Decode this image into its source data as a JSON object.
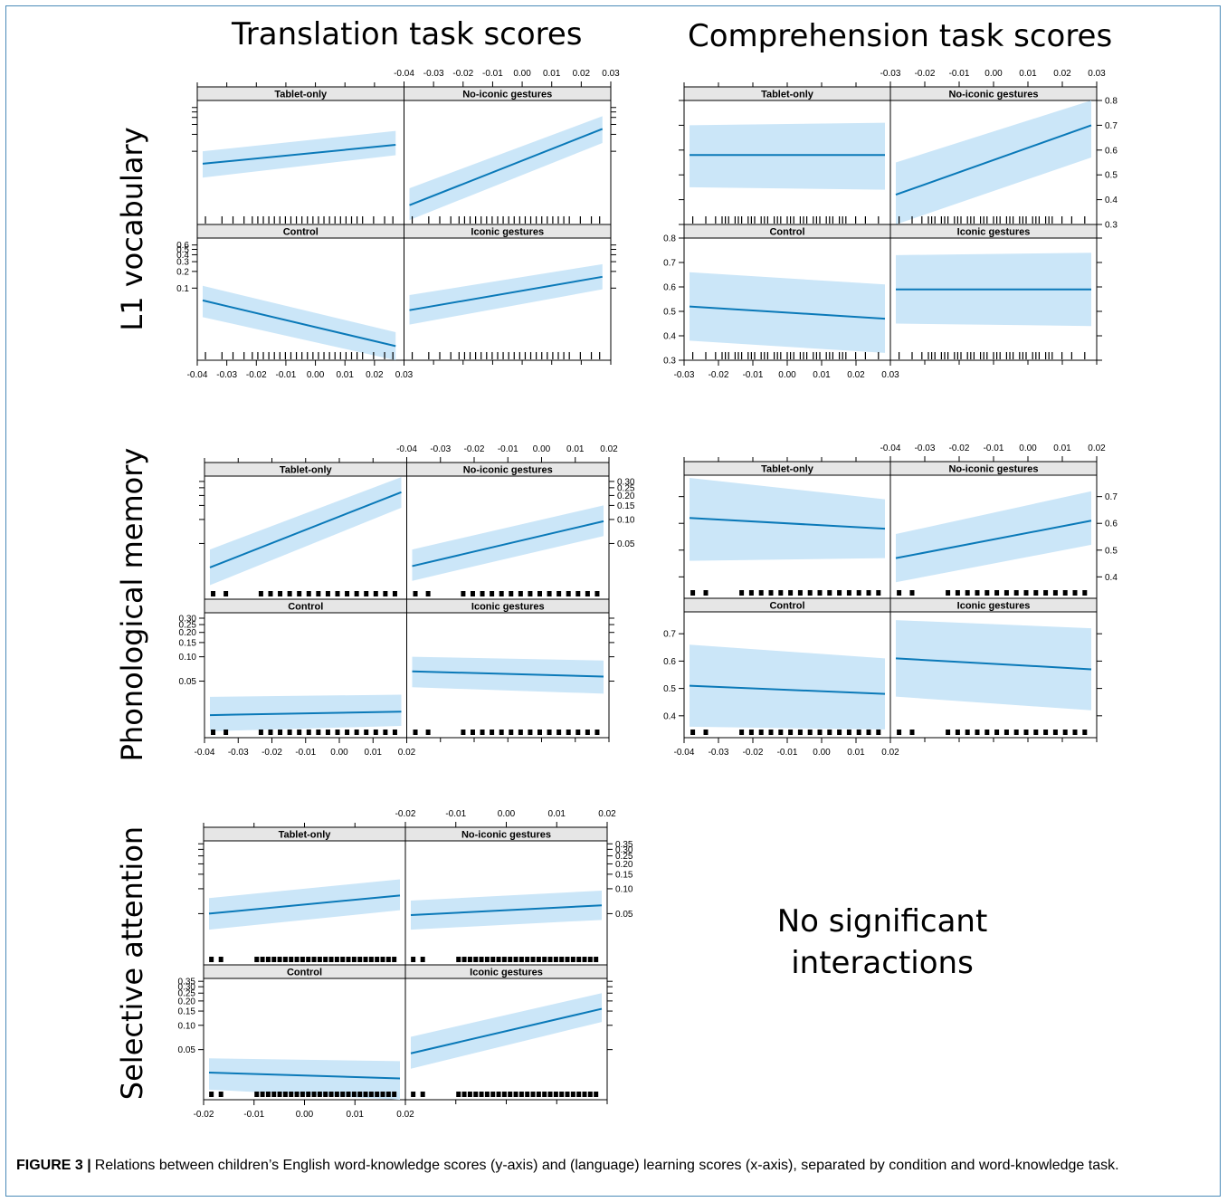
{
  "titles": {
    "col_translation": "Translation task scores",
    "col_comprehension": "Comprehension task scores",
    "row_l1": "L1 vocabulary",
    "row_phon": "Phonological memory",
    "row_sel": "Selective attention",
    "no_sig_line1": "No significant",
    "no_sig_line2": "interactions"
  },
  "caption": {
    "label": "FIGURE 3 |",
    "text": "Relations between children’s English word-knowledge scores (y-axis) and (language) learning scores (x-axis), separated by condition and word-knowledge task."
  },
  "chart_data": [
    {
      "type": "line",
      "row": "L1 vocabulary",
      "task": "Translation task scores",
      "x_ticks": [
        "-0.04",
        "-0.03",
        "-0.02",
        "-0.01",
        "0.00",
        "0.01",
        "0.02",
        "0.03"
      ],
      "xlim": [
        -0.04,
        0.03
      ],
      "y_ticks": [
        "0.6",
        "0.5",
        "0.4",
        "0.3",
        "0.2",
        "0.1"
      ],
      "y_tick_values": [
        0.6,
        0.5,
        0.4,
        0.3,
        0.2,
        0.1
      ],
      "ylim": [
        0.005,
        0.8
      ],
      "log_y": true,
      "rug": "fine",
      "rug_x": [
        -0.039,
        -0.033,
        -0.029,
        -0.025,
        -0.022,
        -0.02,
        -0.018,
        -0.016,
        -0.014,
        -0.012,
        -0.01,
        -0.008,
        -0.006,
        -0.004,
        -0.002,
        0.0,
        0.002,
        0.004,
        0.006,
        0.008,
        0.01,
        0.012,
        0.014,
        0.016,
        0.018,
        0.022,
        0.026,
        0.029
      ],
      "panels": [
        {
          "label": "Tablet-only",
          "x": [
            -0.04,
            0.029
          ],
          "fit": [
            0.06,
            0.13
          ],
          "lower": [
            0.034,
            0.085
          ],
          "upper": [
            0.1,
            0.23
          ]
        },
        {
          "label": "No-iconic gestures",
          "x": [
            -0.04,
            0.029
          ],
          "fit": [
            0.011,
            0.25
          ],
          "lower": [
            0.006,
            0.14
          ],
          "upper": [
            0.022,
            0.42
          ]
        },
        {
          "label": "Control",
          "x": [
            -0.04,
            0.029
          ],
          "fit": [
            0.06,
            0.009
          ],
          "lower": [
            0.03,
            0.005
          ],
          "upper": [
            0.11,
            0.016
          ]
        },
        {
          "label": "Iconic gestures",
          "x": [
            -0.04,
            0.029
          ],
          "fit": [
            0.04,
            0.16
          ],
          "lower": [
            0.022,
            0.095
          ],
          "upper": [
            0.075,
            0.27
          ]
        }
      ]
    },
    {
      "type": "line",
      "row": "L1 vocabulary",
      "task": "Comprehension task scores",
      "x_ticks": [
        "-0.03",
        "-0.02",
        "-0.01",
        "0.00",
        "0.01",
        "0.02",
        "0.03"
      ],
      "xlim": [
        -0.03,
        0.03
      ],
      "y_ticks": [
        "0.8",
        "0.7",
        "0.6",
        "0.5",
        "0.4",
        "0.3"
      ],
      "y_tick_values": [
        0.8,
        0.7,
        0.6,
        0.5,
        0.4,
        0.3
      ],
      "ylim": [
        0.3,
        0.8
      ],
      "log_y": false,
      "rug": "fine",
      "rug_x": [
        -0.029,
        -0.025,
        -0.022,
        -0.02,
        -0.019,
        -0.018,
        -0.016,
        -0.015,
        -0.014,
        -0.012,
        -0.011,
        -0.01,
        -0.008,
        -0.007,
        -0.006,
        -0.004,
        -0.003,
        -0.002,
        0.0,
        0.001,
        0.002,
        0.004,
        0.005,
        0.006,
        0.008,
        0.009,
        0.01,
        0.012,
        0.013,
        0.014,
        0.016,
        0.017,
        0.018,
        0.021,
        0.024,
        0.028
      ],
      "panels": [
        {
          "label": "Tablet-only",
          "x": [
            -0.03,
            0.03
          ],
          "fit": [
            0.58,
            0.58
          ],
          "lower": [
            0.45,
            0.44
          ],
          "upper": [
            0.7,
            0.71
          ]
        },
        {
          "label": "No-iconic gestures",
          "x": [
            -0.03,
            0.03
          ],
          "fit": [
            0.42,
            0.7
          ],
          "lower": [
            0.3,
            0.57
          ],
          "upper": [
            0.55,
            0.81
          ]
        },
        {
          "label": "Control",
          "x": [
            -0.03,
            0.03
          ],
          "fit": [
            0.52,
            0.47
          ],
          "lower": [
            0.38,
            0.33
          ],
          "upper": [
            0.66,
            0.61
          ]
        },
        {
          "label": "Iconic gestures",
          "x": [
            -0.03,
            0.03
          ],
          "fit": [
            0.59,
            0.59
          ],
          "lower": [
            0.45,
            0.44
          ],
          "upper": [
            0.73,
            0.74
          ]
        }
      ]
    },
    {
      "type": "line",
      "row": "Phonological memory",
      "task": "Translation task scores",
      "x_ticks": [
        "-0.04",
        "-0.03",
        "-0.02",
        "-0.01",
        "0.00",
        "0.01",
        "0.02"
      ],
      "xlim": [
        -0.04,
        0.02
      ],
      "y_ticks": [
        "0.30",
        "0.25",
        "0.20",
        "0.15",
        "0.10",
        "0.05"
      ],
      "y_tick_values": [
        0.3,
        0.25,
        0.2,
        0.15,
        0.1,
        0.05
      ],
      "ylim": [
        0.01,
        0.35
      ],
      "log_y": true,
      "rug": "thick",
      "rug_x": [
        -0.039,
        -0.035,
        -0.024,
        -0.021,
        -0.018,
        -0.015,
        -0.012,
        -0.009,
        -0.006,
        -0.003,
        0.0,
        0.003,
        0.006,
        0.009,
        0.012,
        0.015,
        0.018
      ],
      "panels": [
        {
          "label": "Tablet-only",
          "x": [
            -0.04,
            0.02
          ],
          "fit": [
            0.025,
            0.22
          ],
          "lower": [
            0.015,
            0.14
          ],
          "upper": [
            0.042,
            0.34
          ]
        },
        {
          "label": "No-iconic gestures",
          "x": [
            -0.04,
            0.02
          ],
          "fit": [
            0.026,
            0.095
          ],
          "lower": [
            0.017,
            0.062
          ],
          "upper": [
            0.042,
            0.15
          ]
        },
        {
          "label": "Control",
          "x": [
            -0.04,
            0.02
          ],
          "fit": [
            0.019,
            0.021
          ],
          "lower": [
            0.012,
            0.014
          ],
          "upper": [
            0.032,
            0.034
          ]
        },
        {
          "label": "Iconic gestures",
          "x": [
            -0.04,
            0.02
          ],
          "fit": [
            0.066,
            0.057
          ],
          "lower": [
            0.042,
            0.035
          ],
          "upper": [
            0.1,
            0.09
          ]
        }
      ]
    },
    {
      "type": "line",
      "row": "Phonological memory",
      "task": "Comprehension task scores",
      "x_ticks": [
        "-0.04",
        "-0.03",
        "-0.02",
        "-0.01",
        "0.00",
        "0.01",
        "0.02"
      ],
      "xlim": [
        -0.04,
        0.02
      ],
      "y_ticks": [
        "0.7",
        "0.6",
        "0.5",
        "0.4"
      ],
      "y_tick_values": [
        0.7,
        0.6,
        0.5,
        0.4
      ],
      "ylim": [
        0.32,
        0.78
      ],
      "log_y": false,
      "rug": "thick",
      "rug_x": [
        -0.039,
        -0.035,
        -0.024,
        -0.021,
        -0.018,
        -0.015,
        -0.012,
        -0.009,
        -0.006,
        -0.003,
        0.0,
        0.003,
        0.006,
        0.009,
        0.012,
        0.015,
        0.018
      ],
      "panels": [
        {
          "label": "Tablet-only",
          "x": [
            -0.04,
            0.02
          ],
          "fit": [
            0.62,
            0.58
          ],
          "lower": [
            0.46,
            0.47
          ],
          "upper": [
            0.77,
            0.69
          ]
        },
        {
          "label": "No-iconic gestures",
          "x": [
            -0.04,
            0.02
          ],
          "fit": [
            0.47,
            0.61
          ],
          "lower": [
            0.38,
            0.52
          ],
          "upper": [
            0.56,
            0.72
          ]
        },
        {
          "label": "Control",
          "x": [
            -0.04,
            0.02
          ],
          "fit": [
            0.51,
            0.48
          ],
          "lower": [
            0.36,
            0.35
          ],
          "upper": [
            0.66,
            0.61
          ]
        },
        {
          "label": "Iconic gestures",
          "x": [
            -0.04,
            0.02
          ],
          "fit": [
            0.61,
            0.57
          ],
          "lower": [
            0.47,
            0.42
          ],
          "upper": [
            0.75,
            0.72
          ]
        }
      ]
    },
    {
      "type": "line",
      "row": "Selective attention",
      "task": "Translation task scores",
      "x_ticks": [
        "-0.02",
        "-0.01",
        "0.00",
        "0.01",
        "0.02"
      ],
      "xlim": [
        -0.02,
        0.02
      ],
      "y_ticks": [
        "0.35",
        "0.30",
        "0.25",
        "0.20",
        "0.15",
        "0.10",
        "0.05"
      ],
      "y_tick_values": [
        0.35,
        0.3,
        0.25,
        0.2,
        0.15,
        0.1,
        0.05
      ],
      "ylim": [
        0.012,
        0.38
      ],
      "log_y": true,
      "rug": "thick",
      "rug_x": [
        -0.0195,
        -0.0175,
        -0.01,
        -0.0088,
        -0.0076,
        -0.0064,
        -0.0052,
        -0.004,
        -0.0028,
        -0.0016,
        -0.0004,
        0.0008,
        0.002,
        0.0032,
        0.0044,
        0.0056,
        0.0068,
        0.008,
        0.0092,
        0.0104,
        0.0116,
        0.0128,
        0.014,
        0.0152,
        0.0164,
        0.0176,
        0.0188
      ],
      "panels": [
        {
          "label": "Tablet-only",
          "x": [
            -0.02,
            0.02
          ],
          "fit": [
            0.05,
            0.083
          ],
          "lower": [
            0.032,
            0.055
          ],
          "upper": [
            0.077,
            0.13
          ]
        },
        {
          "label": "No-iconic gestures",
          "x": [
            -0.02,
            0.02
          ],
          "fit": [
            0.048,
            0.063
          ],
          "lower": [
            0.032,
            0.042
          ],
          "upper": [
            0.072,
            0.095
          ]
        },
        {
          "label": "Control",
          "x": [
            -0.02,
            0.02
          ],
          "fit": [
            0.026,
            0.022
          ],
          "lower": [
            0.016,
            0.012
          ],
          "upper": [
            0.039,
            0.036
          ]
        },
        {
          "label": "Iconic gestures",
          "x": [
            -0.02,
            0.02
          ],
          "fit": [
            0.045,
            0.16
          ],
          "lower": [
            0.029,
            0.11
          ],
          "upper": [
            0.072,
            0.25
          ]
        }
      ]
    }
  ]
}
